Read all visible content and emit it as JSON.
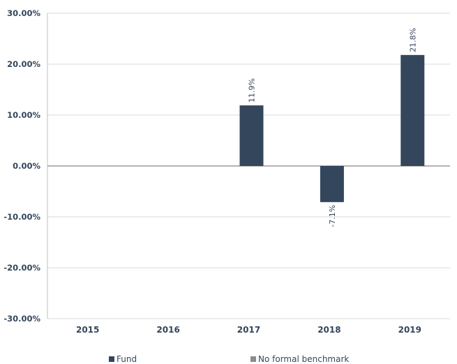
{
  "chart_data": {
    "type": "bar",
    "categories": [
      "2015",
      "2016",
      "2017",
      "2018",
      "2019"
    ],
    "series": [
      {
        "name": "Fund",
        "values": [
          null,
          null,
          11.9,
          -7.1,
          21.8
        ],
        "color": "#34465c",
        "data_labels": [
          "",
          "",
          "11.9%",
          "-7.1%",
          "21.8%"
        ]
      },
      {
        "name": "No formal benchmark",
        "values": [
          null,
          null,
          null,
          null,
          null
        ],
        "color": "#8c8c8c"
      }
    ],
    "y_ticks": [
      "30.00%",
      "20.00%",
      "10.00%",
      "0.00%",
      "-10.00%",
      "-20.00%",
      "-30.00%"
    ],
    "ylim": [
      -30,
      30
    ],
    "grid": true,
    "legend_position": "bottom-center"
  }
}
